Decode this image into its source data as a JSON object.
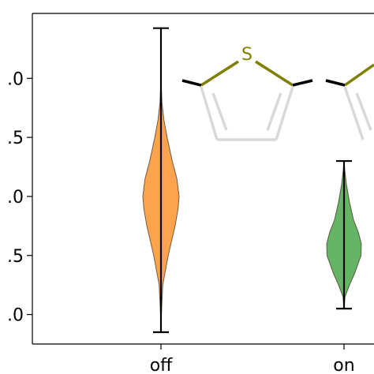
{
  "chart_data": {
    "type": "violin",
    "title": "",
    "xlabel": "",
    "ylabel": "",
    "categories": [
      "off",
      "on"
    ],
    "ytick_labels": [
      ".0",
      ".5",
      ".0",
      ".5",
      ".0"
    ],
    "ylim": [
      0.0,
      1.12
    ],
    "grid": false,
    "legend": "none",
    "series": [
      {
        "category": "off",
        "color": "#fca44d",
        "min": 0.04,
        "max": 1.07,
        "density": [
          [
            0.04,
            0.0
          ],
          [
            0.1,
            0.02
          ],
          [
            0.2,
            0.1
          ],
          [
            0.3,
            0.4
          ],
          [
            0.4,
            0.78
          ],
          [
            0.46,
            0.95
          ],
          [
            0.5,
            1.0
          ],
          [
            0.56,
            0.88
          ],
          [
            0.62,
            0.62
          ],
          [
            0.7,
            0.34
          ],
          [
            0.76,
            0.16
          ],
          [
            0.82,
            0.05
          ],
          [
            0.88,
            0.01
          ],
          [
            1.07,
            0.0
          ]
        ]
      },
      {
        "category": "on",
        "color": "#66b466",
        "min": 0.12,
        "max": 0.62,
        "density": [
          [
            0.12,
            0.0
          ],
          [
            0.16,
            0.06
          ],
          [
            0.2,
            0.32
          ],
          [
            0.24,
            0.62
          ],
          [
            0.3,
            0.98
          ],
          [
            0.34,
            1.0
          ],
          [
            0.38,
            0.82
          ],
          [
            0.42,
            0.55
          ],
          [
            0.48,
            0.32
          ],
          [
            0.54,
            0.14
          ],
          [
            0.59,
            0.04
          ],
          [
            0.62,
            0.0
          ]
        ]
      }
    ],
    "inset": {
      "type": "molecule",
      "heteroatom_label": "S",
      "heteroatom_color": "#808000",
      "bond_color": "#d9d9d9"
    }
  }
}
